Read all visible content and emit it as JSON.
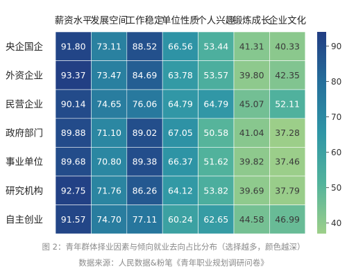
{
  "chart_data": {
    "type": "heatmap",
    "columns": [
      "薪资水平",
      "发展空间",
      "工作稳定",
      "单位性质",
      "个人兴趣",
      "锻炼成长",
      "企业文化"
    ],
    "rows": [
      "央企国企",
      "外资企业",
      "民营企业",
      "政府部门",
      "事业单位",
      "研究机构",
      "自主创业"
    ],
    "values": [
      [
        91.8,
        73.11,
        88.52,
        66.56,
        53.44,
        41.31,
        40.33
      ],
      [
        93.37,
        73.47,
        84.69,
        63.78,
        53.57,
        39.8,
        42.35
      ],
      [
        90.14,
        74.65,
        76.06,
        64.79,
        64.79,
        45.07,
        52.11
      ],
      [
        89.88,
        71.1,
        89.02,
        67.05,
        50.58,
        41.04,
        37.28
      ],
      [
        89.68,
        70.8,
        89.38,
        66.37,
        51.62,
        39.82,
        37.46
      ],
      [
        92.75,
        71.76,
        86.26,
        64.12,
        53.82,
        39.69,
        37.79
      ],
      [
        91.57,
        74.7,
        77.11,
        60.24,
        62.65,
        44.58,
        46.99
      ]
    ],
    "colorbar": {
      "min": 37,
      "max": 94,
      "ticks": [
        40,
        50,
        60,
        70,
        80,
        90
      ]
    },
    "colormap": [
      "#9dcf89",
      "#52b39c",
      "#2f96a6",
      "#256f9b",
      "#223d83"
    ],
    "colors": {
      "light_text": "#ffffff",
      "dark_text": "#3a3a3a",
      "cell_border": "#ffffff"
    }
  },
  "captions": {
    "figure": "图 2：青年群体择业因素与倾向就业去向占比分布（选择越多，颜色越深）",
    "source": "数据来源：人民数据&粉笔《青年职业规划调研问卷》"
  }
}
